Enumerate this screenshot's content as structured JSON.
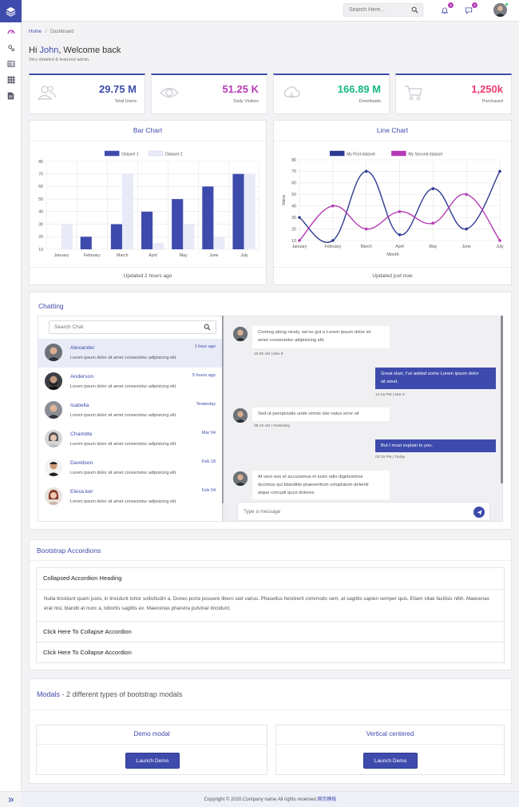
{
  "header": {
    "search_placeholder": "Search Here...",
    "notifications_count": "3",
    "messages_count": "4"
  },
  "breadcrumb": {
    "home": "Home",
    "separator": "/",
    "current": "Dashboard"
  },
  "welcome": {
    "prefix": "Hi ",
    "name": "John",
    "suffix": ", Welcome back",
    "subtitle": "Very detailed & featured admin."
  },
  "stats": [
    {
      "value": "29.75 M",
      "label": "Total Users",
      "color": "#3e4bad",
      "icon": "users-icon"
    },
    {
      "value": "51.25 K",
      "label": "Daily Visitors",
      "color": "#b53bb5",
      "icon": "eye-icon"
    },
    {
      "value": "166.89 M",
      "label": "Downloads",
      "color": "#17b882",
      "icon": "cloud-download-icon"
    },
    {
      "value": "1,250k",
      "label": "Purchased",
      "color": "#ef3b70",
      "icon": "cart-icon"
    }
  ],
  "bar_card": {
    "title": "Bar Chart",
    "footer": "Updated 2 hours ago"
  },
  "line_card": {
    "title": "Line Chart",
    "footer": "Updated just now"
  },
  "chart_data": [
    {
      "type": "bar",
      "categories": [
        "January",
        "February",
        "March",
        "April",
        "May",
        "June",
        "July"
      ],
      "series": [
        {
          "name": "Dataset 1",
          "values": [
            10,
            20,
            30,
            40,
            50,
            60,
            70
          ],
          "color": "#3e4bad"
        },
        {
          "name": "Dataset 2",
          "values": [
            30,
            10,
            70,
            15,
            30,
            20,
            70
          ],
          "color": "#e8ebf7"
        }
      ],
      "yticks": [
        10,
        20,
        30,
        40,
        50,
        60,
        70,
        80
      ],
      "ylim": [
        10,
        80
      ],
      "legend": "top",
      "grid": true
    },
    {
      "type": "line",
      "categories": [
        "January",
        "February",
        "March",
        "April",
        "May",
        "June",
        "July"
      ],
      "series": [
        {
          "name": "My First dataset",
          "values": [
            30,
            10,
            70,
            15,
            55,
            20,
            70
          ],
          "color": "#2d3a91"
        },
        {
          "name": "My Second dataset",
          "values": [
            10,
            40,
            20,
            35,
            25,
            50,
            10
          ],
          "color": "#b53bb5"
        }
      ],
      "yticks": [
        10,
        20,
        30,
        40,
        50,
        60,
        70,
        80
      ],
      "ylim": [
        10,
        80
      ],
      "xlabel": "Month",
      "ylabel": "Value",
      "legend": "top",
      "grid": true
    }
  ],
  "chat": {
    "title": "Chatting",
    "search_placeholder": "Search Chat",
    "contacts": [
      {
        "name": "Alexander",
        "time": "1 hour ago",
        "message": "Lorem ipsum dolor sit amet consectetur adipisicing elit."
      },
      {
        "name": "Anderson",
        "time": "5 hours ago",
        "message": "Lorem ipsum dolor sit amet consectetur adipisicing elit."
      },
      {
        "name": "Isabella",
        "time": "Yesterday",
        "message": "Lorem ipsum dolor sit amet consectetur adipisicing elit."
      },
      {
        "name": "Charlotte",
        "time": "Mar 04",
        "message": "Lorem ipsum dolor sit amet consectetur adipisicing elit."
      },
      {
        "name": "Davidson",
        "time": "Feb 18",
        "message": "Lorem ipsum dolor sit amet consectetur adipisicing elit."
      },
      {
        "name": "Elexa ker",
        "time": "Feb 04",
        "message": "Lorem ipsum dolor sit amet consectetur adipisicing elit."
      }
    ],
    "messages": [
      {
        "line1": "Coming along nicely, we've got a Lorem ipsum dolor sit",
        "line2": "amet consectetur adipisicing elit.",
        "time": "10:05 AM | Mar 9"
      },
      {
        "line1": "Great start, I've added some Lorem ipsum dolor",
        "line2": "sit amet.",
        "time": "12:15 PM | Mar 9"
      },
      {
        "line1": "Sed ut perspiciatis unde omnis iste natus error sit",
        "time": "09:18 AM | Yesterday"
      },
      {
        "line1": "But I must explain to you.",
        "time": "03:15 PM | Today"
      },
      {
        "line1": "At vero eos et accusamus et iusto odio dignissimos",
        "line2": "ducimus qui blanditiis praesentium voluptatum deleniti",
        "line3": "atque corrupti quos dolores.",
        "time": ""
      }
    ],
    "input_placeholder": "Type a message"
  },
  "accordions": {
    "title": "Bootstrap Accordions",
    "item1_heading": "Collapsed Accordion Heading",
    "item1_body": "Nulla tincidunt quam justo, in tincidunt tortor sollicitudin a. Donec porta posuere libero sed varius. Phasellus hendrerit commodo sem, at sagittis sapien semper quis. Etiam vitae facilisis nibh. Maecenas erat nisl, blandit at nunc a, lobortis sagittis ex. Maecenas pharetra pulvinar tincidunt.",
    "item2_heading": "Click Here To Collapse Accordion",
    "item3_heading": "Click Here To Collapse Accordion"
  },
  "modals": {
    "title": "Modals",
    "subtitle": " - 2 different types of bootstrap modals",
    "demo_title": "Demo modal",
    "vertical_title": "Vertical centered",
    "button_label": "Launch Demo"
  },
  "footer": {
    "text": "Copyright © 2020.Company name All rights reserved.",
    "link": "网页模板"
  }
}
